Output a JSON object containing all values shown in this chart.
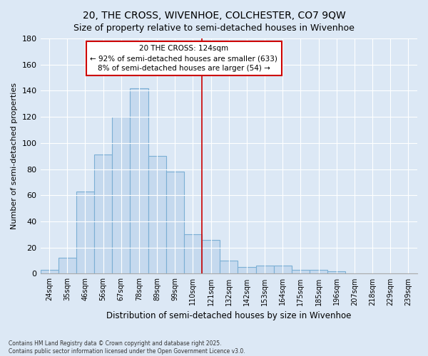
{
  "title": "20, THE CROSS, WIVENHOE, COLCHESTER, CO7 9QW",
  "subtitle": "Size of property relative to semi-detached houses in Wivenhoe",
  "xlabel": "Distribution of semi-detached houses by size in Wivenhoe",
  "ylabel": "Number of semi-detached properties",
  "categories": [
    "24sqm",
    "35sqm",
    "46sqm",
    "56sqm",
    "67sqm",
    "78sqm",
    "89sqm",
    "99sqm",
    "110sqm",
    "121sqm",
    "132sqm",
    "142sqm",
    "153sqm",
    "164sqm",
    "175sqm",
    "185sqm",
    "196sqm",
    "207sqm",
    "218sqm",
    "229sqm",
    "239sqm"
  ],
  "values": [
    3,
    12,
    63,
    91,
    120,
    142,
    90,
    78,
    30,
    26,
    10,
    5,
    6,
    6,
    3,
    3,
    2,
    0,
    0,
    0,
    0
  ],
  "bar_color": "#c5d9ee",
  "bar_edge_color": "#7bafd4",
  "annotation_box_text": "20 THE CROSS: 124sqm\n← 92% of semi-detached houses are smaller (633)\n8% of semi-detached houses are larger (54) →",
  "vline_index": 9,
  "vline_color": "#cc0000",
  "box_edge_color": "#cc0000",
  "box_fill_color": "#ffffff",
  "ylim": [
    0,
    180
  ],
  "yticks": [
    0,
    20,
    40,
    60,
    80,
    100,
    120,
    140,
    160,
    180
  ],
  "footnote": "Contains HM Land Registry data © Crown copyright and database right 2025.\nContains public sector information licensed under the Open Government Licence v3.0.",
  "background_color": "#dce8f5",
  "plot_bg_color": "#dce8f5",
  "title_fontsize": 10,
  "subtitle_fontsize": 9
}
